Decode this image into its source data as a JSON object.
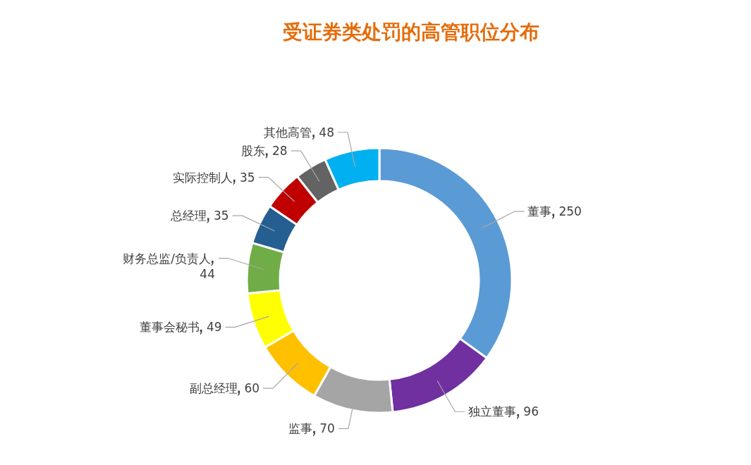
{
  "chart_data": {
    "type": "donut",
    "title": "受证券类处罚的高管职位分布",
    "categories": [
      "董事",
      "独立董事",
      "监事",
      "副总经理",
      "董事会秘书",
      "财务总监/负责人",
      "总经理",
      "实际控制人",
      "股东",
      "其他高管"
    ],
    "values": [
      250,
      96,
      70,
      60,
      49,
      44,
      35,
      35,
      28,
      48
    ],
    "colors": [
      "#5b9bd5",
      "#7030a0",
      "#a5a5a5",
      "#ffc000",
      "#ffff00",
      "#70ad47",
      "#255e91",
      "#c00000",
      "#636363",
      "#00b0f0"
    ],
    "data_labels": true
  }
}
